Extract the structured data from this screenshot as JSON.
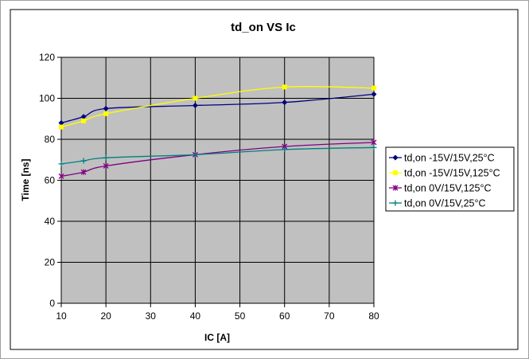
{
  "chart_data": {
    "type": "line",
    "title": "td_on VS Ic",
    "xlabel": "IC [A]",
    "ylabel": "Time [ns]",
    "xlim": [
      10,
      80
    ],
    "ylim": [
      0,
      120
    ],
    "xticks": [
      10,
      20,
      30,
      40,
      50,
      60,
      70,
      80
    ],
    "yticks": [
      0,
      20,
      40,
      60,
      80,
      100,
      120
    ],
    "grid": true,
    "legend_position": "right",
    "plot_background": "#C0C0C0",
    "x": [
      10,
      15,
      20,
      40,
      60,
      80
    ],
    "series": [
      {
        "name": "td,on -15V/15V,25°C",
        "color": "#000080",
        "marker": "diamond",
        "values": [
          88,
          91,
          95,
          96.5,
          98,
          102
        ]
      },
      {
        "name": "td,on -15V/15V,125°C",
        "color": "#FFFF00",
        "marker": "square",
        "values": [
          86,
          89,
          92.5,
          100,
          105.5,
          105
        ]
      },
      {
        "name": "td,on 0V/15V,125°C",
        "color": "#800080",
        "marker": "star",
        "values": [
          62,
          64,
          67,
          72.5,
          76.5,
          78.5
        ]
      },
      {
        "name": "td,on 0V/15V,25°C",
        "color": "#008080",
        "marker": "plus",
        "values": [
          68,
          69.5,
          71,
          72.5,
          75,
          76
        ]
      }
    ]
  }
}
